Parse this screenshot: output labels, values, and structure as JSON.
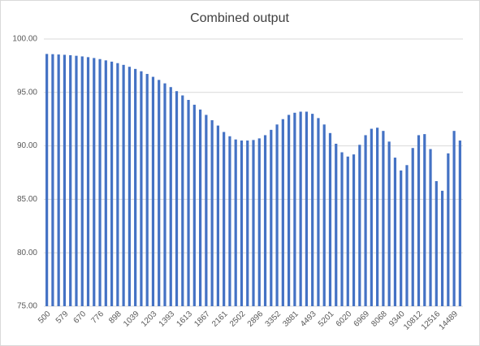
{
  "chart_data": {
    "type": "bar",
    "title": "Combined output",
    "categories": [
      "500",
      null,
      null,
      "579",
      null,
      null,
      "670",
      null,
      null,
      "776",
      null,
      null,
      "898",
      null,
      null,
      "1039",
      null,
      null,
      "1203",
      null,
      null,
      "1393",
      null,
      null,
      "1613",
      null,
      null,
      "1867",
      null,
      null,
      "2161",
      null,
      null,
      "2502",
      null,
      null,
      "2896",
      null,
      null,
      "3352",
      null,
      null,
      "3881",
      null,
      null,
      "4493",
      null,
      null,
      "5201",
      null,
      null,
      "6020",
      null,
      null,
      "6969",
      null,
      null,
      "8068",
      null,
      null,
      "9340",
      null,
      null,
      "10812",
      null,
      null,
      "12516",
      null,
      null,
      "14489",
      null
    ],
    "values": [
      98.6,
      98.58,
      98.55,
      98.52,
      98.48,
      98.43,
      98.37,
      98.3,
      98.22,
      98.12,
      98.0,
      97.88,
      97.74,
      97.58,
      97.4,
      97.2,
      96.98,
      96.73,
      96.46,
      96.17,
      95.85,
      95.5,
      95.12,
      94.72,
      94.3,
      93.85,
      93.4,
      92.9,
      92.4,
      91.9,
      91.3,
      90.9,
      90.6,
      90.5,
      90.5,
      90.55,
      90.7,
      91.0,
      91.5,
      92.0,
      92.5,
      92.9,
      93.1,
      93.2,
      93.2,
      93.0,
      92.6,
      92.0,
      91.2,
      90.2,
      89.4,
      89.0,
      89.2,
      90.1,
      91.0,
      91.6,
      91.7,
      91.4,
      90.4,
      88.9,
      87.7,
      88.2,
      89.8,
      91.0,
      91.1,
      89.7,
      86.7,
      85.8,
      89.3,
      91.4,
      90.5
    ],
    "color": "#4472c4",
    "ylim": [
      75,
      100
    ],
    "yticks": [
      {
        "value": 75,
        "label": "75.00"
      },
      {
        "value": 80,
        "label": "80.00"
      },
      {
        "value": 85,
        "label": "85.00"
      },
      {
        "value": 90,
        "label": "90.00"
      },
      {
        "value": 95,
        "label": "95.00"
      },
      {
        "value": 100,
        "label": "100.00"
      }
    ],
    "grid": true
  }
}
